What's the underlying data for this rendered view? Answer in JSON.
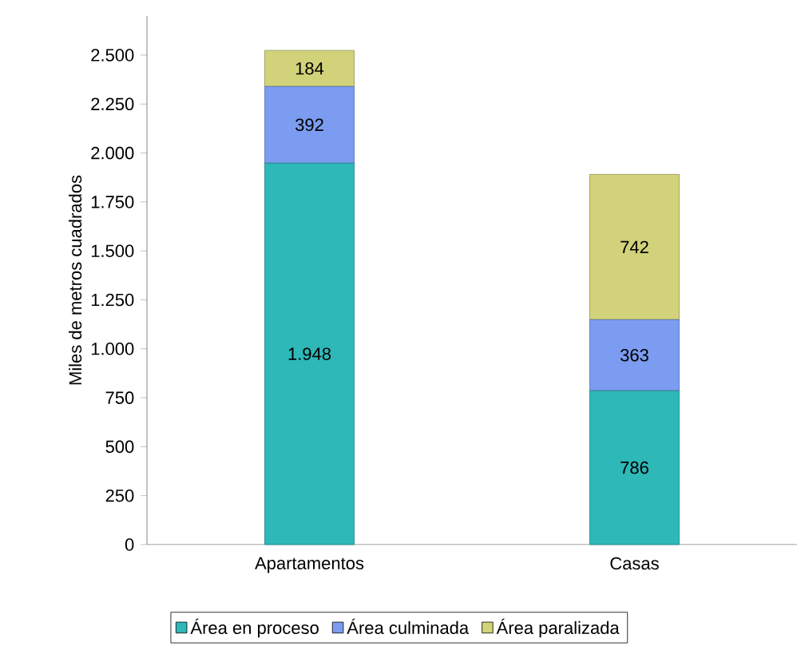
{
  "chart_data": {
    "type": "bar",
    "stacked": true,
    "ylabel": "Miles de metros cuadrados",
    "categories": [
      "Apartamentos",
      "Casas"
    ],
    "series": [
      {
        "name": "Área en proceso",
        "color": "#2eb8b8",
        "values": [
          1948,
          786
        ],
        "value_labels": [
          "1.948",
          "786"
        ]
      },
      {
        "name": "Área culminada",
        "color": "#7b9cf0",
        "values": [
          392,
          363
        ],
        "value_labels": [
          "392",
          "363"
        ]
      },
      {
        "name": "Área paralizada",
        "color": "#d2d27a",
        "values": [
          184,
          742
        ],
        "value_labels": [
          "184",
          "742"
        ]
      }
    ],
    "ylim": [
      0,
      2700
    ],
    "yticks": [
      0,
      {
        "value": 250,
        "label": "250"
      },
      {
        "value": 500,
        "label": "500"
      },
      {
        "value": 750,
        "label": "750"
      },
      {
        "value": 1000,
        "label": "1.000"
      },
      {
        "value": 1250,
        "label": "1.250"
      },
      {
        "value": 1500,
        "label": "1.500"
      },
      {
        "value": 1750,
        "label": "1.750"
      },
      {
        "value": 2000,
        "label": "2.000"
      },
      {
        "value": 2250,
        "label": "2.250"
      },
      {
        "value": 2500,
        "label": "2.500"
      }
    ],
    "legend": "bottom"
  }
}
